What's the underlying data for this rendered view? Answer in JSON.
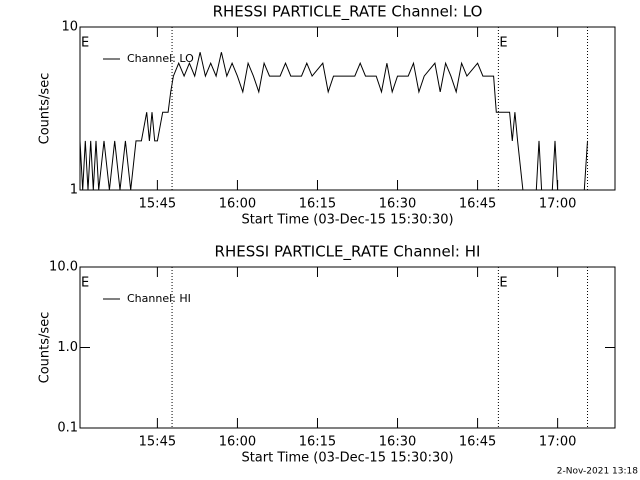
{
  "chart_data": [
    {
      "type": "line",
      "title": "RHESSI PARTICLE_RATE Channel: LO",
      "xlabel": "Start Time (03-Dec-15 15:30:30)",
      "ylabel": "Counts/sec",
      "log_y": true,
      "ylim": [
        1,
        10
      ],
      "yticks": [
        1,
        10
      ],
      "xlim": [
        "15:30:30",
        "17:10:45"
      ],
      "xticks": [
        "15:45",
        "16:00",
        "16:15",
        "16:30",
        "16:45",
        "17:00"
      ],
      "x": [
        "15:30:30",
        "15:31:00",
        "15:31:30",
        "15:32:00",
        "15:32:30",
        "15:33:00",
        "15:33:30",
        "15:34:00",
        "15:35:00",
        "15:36:00",
        "15:37:00",
        "15:38:00",
        "15:39:00",
        "15:40:00",
        "15:41:00",
        "15:42:00",
        "15:43:00",
        "15:43:30",
        "15:44:00",
        "15:44:30",
        "15:45:00",
        "15:46:00",
        "15:47:00",
        "15:47:30",
        "15:48:00",
        "15:49:00",
        "15:50:00",
        "15:51:00",
        "15:52:00",
        "15:53:00",
        "15:54:00",
        "15:55:00",
        "15:56:00",
        "15:57:00",
        "15:58:00",
        "15:59:00",
        "16:00:00",
        "16:01:00",
        "16:02:00",
        "16:03:00",
        "16:04:00",
        "16:05:00",
        "16:06:00",
        "16:08:00",
        "16:09:00",
        "16:10:00",
        "16:12:00",
        "16:13:00",
        "16:14:00",
        "16:16:00",
        "16:17:00",
        "16:18:00",
        "16:20:00",
        "16:22:00",
        "16:23:00",
        "16:24:00",
        "16:26:00",
        "16:27:00",
        "16:28:00",
        "16:29:00",
        "16:30:00",
        "16:32:00",
        "16:33:00",
        "16:34:00",
        "16:35:00",
        "16:37:00",
        "16:38:00",
        "16:39:00",
        "16:40:00",
        "16:41:00",
        "16:42:00",
        "16:43:00",
        "16:45:00",
        "16:46:00",
        "16:48:00",
        "16:48:30",
        "16:51:00",
        "16:51:30",
        "16:52:00",
        "16:52:30",
        "16:53:30",
        "16:55:00",
        "16:56:00",
        "16:56:30",
        "16:57:00",
        "16:59:00",
        "16:59:30",
        "17:00:00",
        "17:04:00",
        "17:05:00",
        "17:05:36"
      ],
      "series": [
        {
          "name": "Channel: LO",
          "color": "#000000",
          "values": [
            2,
            1,
            2,
            1,
            2,
            1,
            2,
            1,
            2,
            1,
            2,
            1,
            2,
            1,
            2,
            2,
            3,
            2,
            3,
            2,
            2,
            3,
            3,
            4,
            5,
            6,
            5,
            6,
            5,
            7,
            5,
            6,
            5,
            7,
            5,
            6,
            5,
            4,
            6,
            5,
            4,
            6,
            5,
            5,
            6,
            5,
            5,
            6,
            5,
            6,
            4,
            5,
            5,
            5,
            6,
            5,
            5,
            4,
            6,
            4,
            5,
            5,
            6,
            4,
            5,
            6,
            4,
            6,
            5,
            4,
            6,
            5,
            6,
            5,
            5,
            3,
            3,
            2,
            3,
            2,
            1,
            1,
            1,
            2,
            1,
            1,
            2,
            1,
            1,
            1,
            2
          ]
        }
      ],
      "vlines": [
        "15:47:45",
        "16:48:54",
        "17:05:36"
      ],
      "annotations": [
        {
          "x": "15:30:30",
          "text": "E"
        },
        {
          "x": "16:48:54",
          "text": "E"
        }
      ]
    },
    {
      "type": "line",
      "title": "RHESSI PARTICLE_RATE Channel: HI",
      "xlabel": "Start Time (03-Dec-15 15:30:30)",
      "ylabel": "Counts/sec",
      "log_y": true,
      "ylim": [
        0.1,
        10
      ],
      "yticks": [
        0.1,
        {
          "value": 1,
          "label": "1.0"
        },
        {
          "value": 10,
          "label": "10.0"
        }
      ],
      "xlim": [
        "15:30:30",
        "17:10:45"
      ],
      "xticks": [
        "15:45",
        "16:00",
        "16:15",
        "16:30",
        "16:45",
        "17:00"
      ],
      "x": [],
      "series": [
        {
          "name": "Channel: HI",
          "color": "#000000",
          "values": []
        }
      ],
      "vlines": [
        "15:47:45",
        "16:48:54",
        "17:05:36"
      ],
      "annotations": [
        {
          "x": "15:30:30",
          "text": "E"
        },
        {
          "x": "16:48:54",
          "text": "E"
        }
      ]
    }
  ],
  "footer": "2-Nov-2021 13:18"
}
